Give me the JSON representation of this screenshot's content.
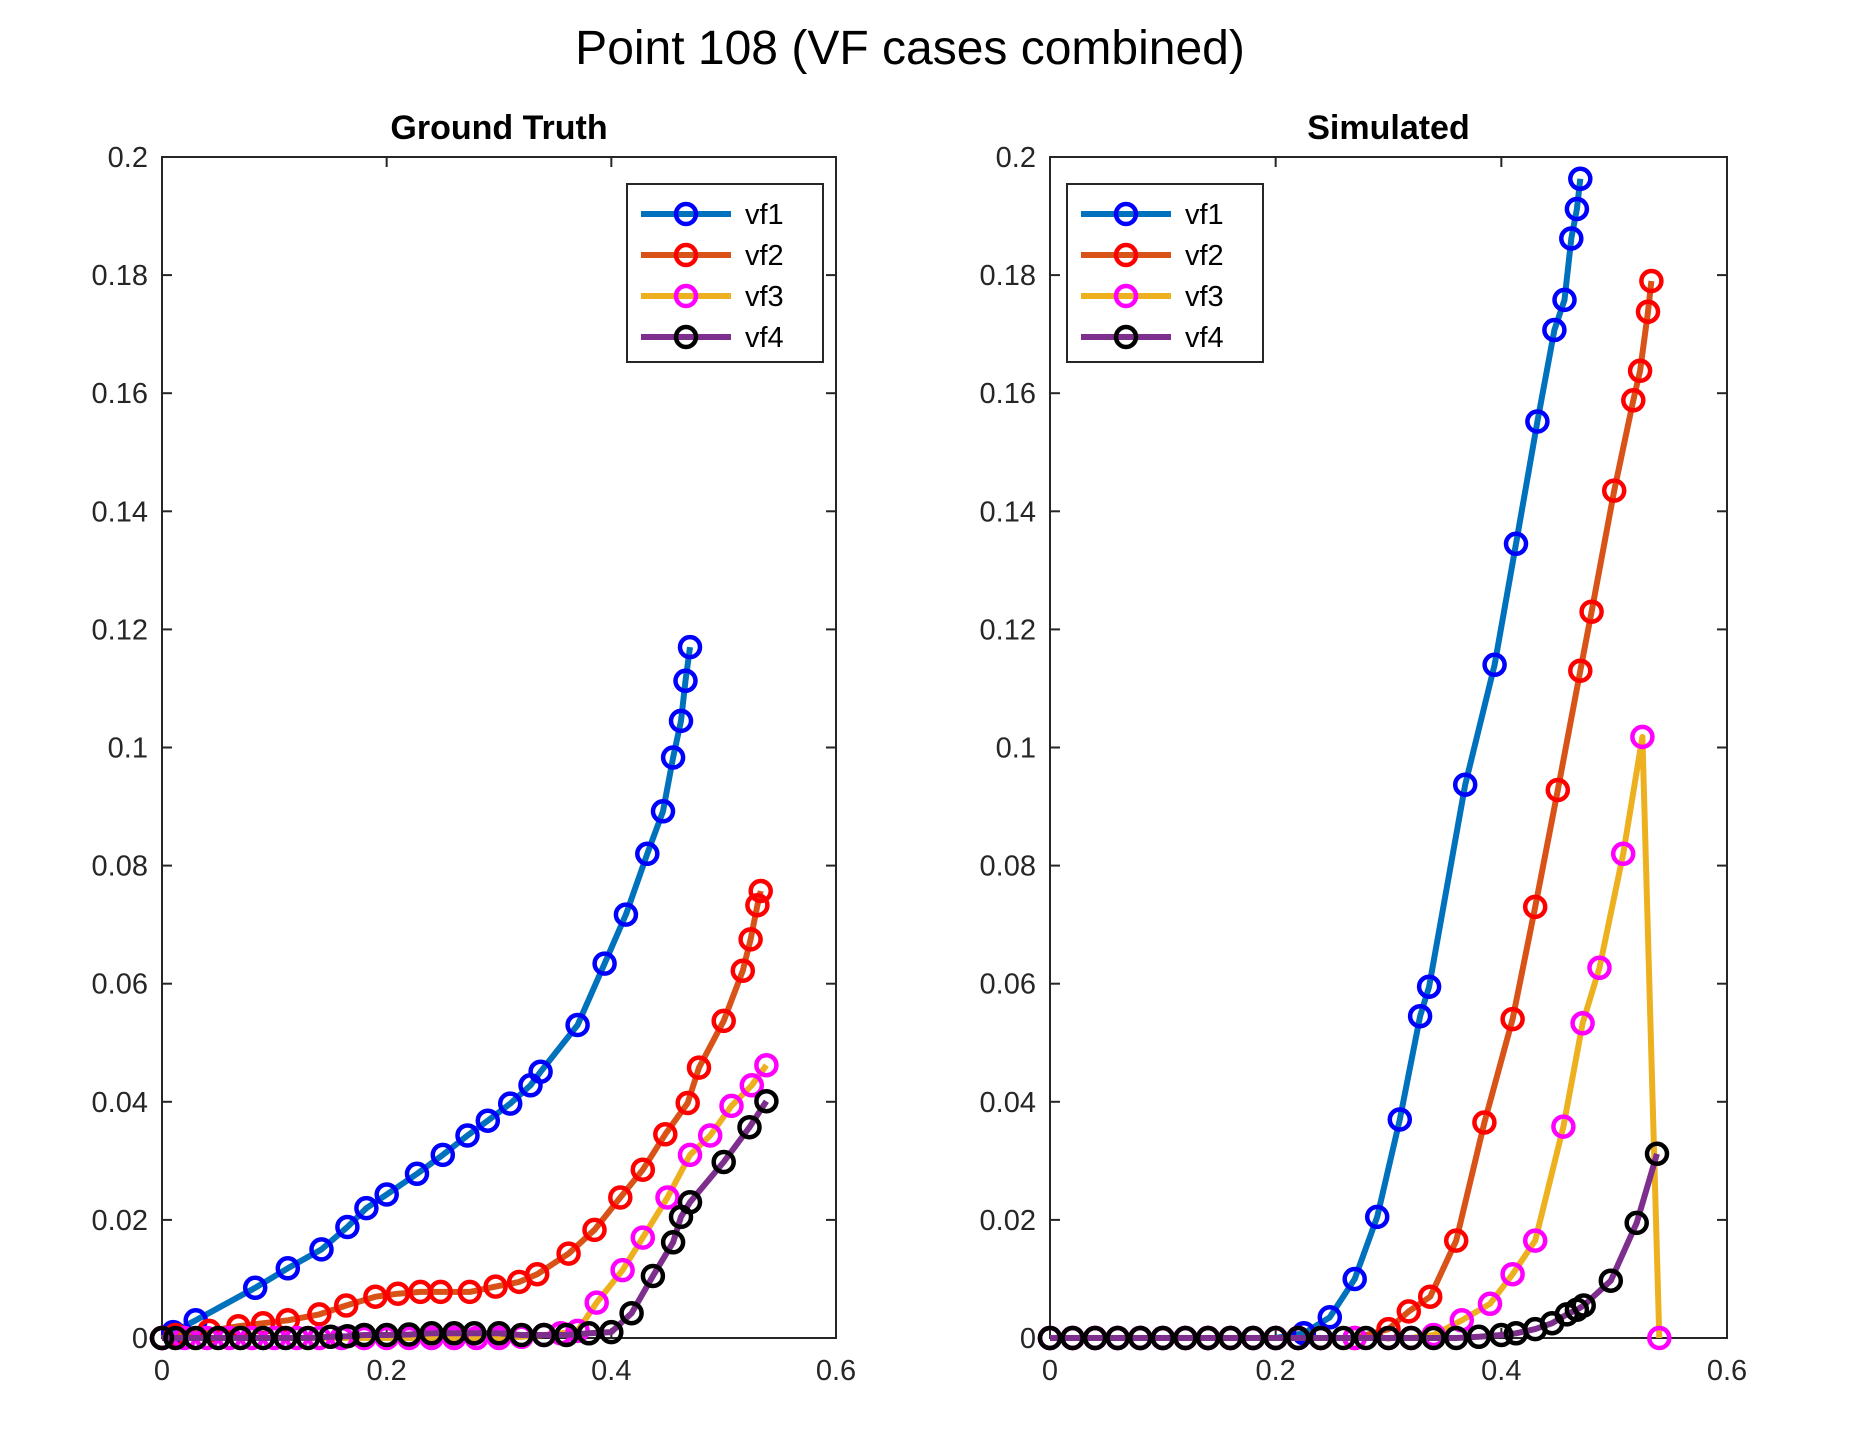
{
  "figure": {
    "title": "Point 108 (VF cases combined)"
  },
  "chart_data": [
    {
      "type": "line",
      "title": "Ground Truth",
      "xlabel": "",
      "ylabel": "",
      "xlim": [
        0,
        0.6
      ],
      "ylim": [
        0,
        0.2
      ],
      "xticks": [
        "0",
        "0.2",
        "0.4",
        "0.6"
      ],
      "yticks": [
        "0",
        "0.02",
        "0.04",
        "0.06",
        "0.08",
        "0.1",
        "0.12",
        "0.14",
        "0.16",
        "0.18",
        "0.2"
      ],
      "grid": false,
      "legend": "top-right",
      "series": [
        {
          "name": "vf1",
          "line_color": "#0072BD",
          "marker_color": "#0000FF",
          "x": [
            0,
            0.01,
            0.03,
            0.083,
            0.112,
            0.142,
            0.165,
            0.182,
            0.2,
            0.227,
            0.25,
            0.272,
            0.29,
            0.31,
            0.328,
            0.337,
            0.37,
            0.394,
            0.413,
            0.432,
            0.446,
            0.455,
            0.462,
            0.466,
            0.47
          ],
          "y": [
            0,
            0.001,
            0.003,
            0.0085,
            0.0118,
            0.015,
            0.0188,
            0.022,
            0.0243,
            0.0278,
            0.031,
            0.0343,
            0.0368,
            0.0397,
            0.0428,
            0.0451,
            0.053,
            0.0634,
            0.0717,
            0.082,
            0.0892,
            0.0983,
            0.1045,
            0.1113,
            0.117
          ]
        },
        {
          "name": "vf2",
          "line_color": "#D95319",
          "marker_color": "#FF0000",
          "x": [
            0,
            0.012,
            0.042,
            0.068,
            0.09,
            0.112,
            0.14,
            0.164,
            0.19,
            0.21,
            0.23,
            0.248,
            0.274,
            0.297,
            0.318,
            0.334,
            0.362,
            0.385,
            0.408,
            0.428,
            0.448,
            0.468,
            0.478,
            0.5,
            0.517,
            0.524,
            0.53,
            0.533
          ],
          "y": [
            0,
            0.0005,
            0.0012,
            0.002,
            0.0025,
            0.003,
            0.004,
            0.0055,
            0.007,
            0.0075,
            0.0078,
            0.0078,
            0.0078,
            0.0087,
            0.0095,
            0.0108,
            0.0143,
            0.0183,
            0.0238,
            0.0285,
            0.0345,
            0.0398,
            0.0458,
            0.0537,
            0.0622,
            0.0675,
            0.0733,
            0.0757
          ]
        },
        {
          "name": "vf3",
          "line_color": "#EDB120",
          "marker_color": "#FF00FF",
          "x": [
            0,
            0.02,
            0.04,
            0.06,
            0.08,
            0.1,
            0.12,
            0.14,
            0.16,
            0.18,
            0.2,
            0.22,
            0.24,
            0.26,
            0.28,
            0.3,
            0.32,
            0.34,
            0.355,
            0.37,
            0.387,
            0.41,
            0.428,
            0.45,
            0.47,
            0.488,
            0.507,
            0.525,
            0.538
          ],
          "y": [
            0,
            0,
            0,
            0,
            0,
            0,
            0,
            0,
            0,
            0,
            0,
            0,
            0,
            0,
            0,
            0,
            0.0002,
            0.0005,
            0.0008,
            0.0012,
            0.006,
            0.0115,
            0.017,
            0.0238,
            0.031,
            0.0343,
            0.0393,
            0.0428,
            0.0462
          ]
        },
        {
          "name": "vf4",
          "line_color": "#7E2F8E",
          "marker_color": "#000000",
          "x": [
            0,
            0.012,
            0.03,
            0.05,
            0.07,
            0.09,
            0.11,
            0.13,
            0.15,
            0.165,
            0.18,
            0.2,
            0.22,
            0.24,
            0.26,
            0.278,
            0.3,
            0.32,
            0.34,
            0.36,
            0.38,
            0.4,
            0.418,
            0.437,
            0.455,
            0.462,
            0.47,
            0.5,
            0.523,
            0.538
          ],
          "y": [
            0,
            0,
            0,
            0,
            0,
            0,
            0,
            0,
            0.0002,
            0.0003,
            0.0005,
            0.0005,
            0.0006,
            0.0008,
            0.0008,
            0.0008,
            0.0008,
            0.0005,
            0.0005,
            0.0005,
            0.0008,
            0.001,
            0.0042,
            0.0105,
            0.0162,
            0.0205,
            0.023,
            0.0298,
            0.0357,
            0.0401
          ]
        }
      ]
    },
    {
      "type": "line",
      "title": "Simulated",
      "xlabel": "",
      "ylabel": "",
      "xlim": [
        0,
        0.6
      ],
      "ylim": [
        0,
        0.2
      ],
      "xticks": [
        "0",
        "0.2",
        "0.4",
        "0.6"
      ],
      "yticks": [
        "0",
        "0.02",
        "0.04",
        "0.06",
        "0.08",
        "0.1",
        "0.12",
        "0.14",
        "0.16",
        "0.18",
        "0.2"
      ],
      "grid": false,
      "legend": "top-left",
      "series": [
        {
          "name": "vf1",
          "line_color": "#0072BD",
          "marker_color": "#0000FF",
          "x": [
            0,
            0.02,
            0.04,
            0.06,
            0.08,
            0.1,
            0.12,
            0.14,
            0.16,
            0.18,
            0.2,
            0.225,
            0.248,
            0.27,
            0.29,
            0.31,
            0.328,
            0.336,
            0.368,
            0.394,
            0.413,
            0.432,
            0.447,
            0.456,
            0.462,
            0.467,
            0.47
          ],
          "y": [
            0,
            0,
            0,
            0,
            0,
            0,
            0,
            0,
            0,
            0,
            0,
            0.0008,
            0.0035,
            0.01,
            0.0205,
            0.037,
            0.0545,
            0.0595,
            0.0937,
            0.114,
            0.1345,
            0.1552,
            0.1707,
            0.1758,
            0.1862,
            0.1912,
            0.1963
          ]
        },
        {
          "name": "vf2",
          "line_color": "#D95319",
          "marker_color": "#FF0000",
          "x": [
            0,
            0.02,
            0.04,
            0.06,
            0.08,
            0.1,
            0.12,
            0.14,
            0.16,
            0.18,
            0.2,
            0.22,
            0.24,
            0.27,
            0.3,
            0.318,
            0.337,
            0.36,
            0.385,
            0.41,
            0.43,
            0.45,
            0.47,
            0.48,
            0.5,
            0.517,
            0.523,
            0.53,
            0.533
          ],
          "y": [
            0,
            0,
            0,
            0,
            0,
            0,
            0,
            0,
            0,
            0,
            0,
            0,
            0,
            0,
            0.0015,
            0.0045,
            0.007,
            0.0165,
            0.0365,
            0.054,
            0.073,
            0.0928,
            0.113,
            0.123,
            0.1435,
            0.1588,
            0.1638,
            0.1738,
            0.179
          ]
        },
        {
          "name": "vf3",
          "line_color": "#EDB120",
          "marker_color": "#FF00FF",
          "x": [
            0,
            0.02,
            0.04,
            0.06,
            0.08,
            0.1,
            0.12,
            0.14,
            0.16,
            0.18,
            0.2,
            0.22,
            0.24,
            0.27,
            0.3,
            0.32,
            0.34,
            0.365,
            0.39,
            0.41,
            0.43,
            0.455,
            0.472,
            0.487,
            0.508,
            0.525,
            0.54
          ],
          "y": [
            0,
            0,
            0,
            0,
            0,
            0,
            0,
            0,
            0,
            0,
            0,
            0,
            0,
            0,
            0,
            0,
            0.0005,
            0.003,
            0.0058,
            0.0108,
            0.0165,
            0.0358,
            0.0533,
            0.0627,
            0.082,
            0.1018,
            0
          ]
        },
        {
          "name": "vf4",
          "line_color": "#7E2F8E",
          "marker_color": "#000000",
          "x": [
            0,
            0.02,
            0.04,
            0.06,
            0.08,
            0.1,
            0.12,
            0.14,
            0.16,
            0.18,
            0.2,
            0.22,
            0.24,
            0.26,
            0.28,
            0.3,
            0.32,
            0.34,
            0.36,
            0.38,
            0.4,
            0.413,
            0.43,
            0.445,
            0.458,
            0.467,
            0.473,
            0.497,
            0.52,
            0.538
          ],
          "y": [
            0,
            0,
            0,
            0,
            0,
            0,
            0,
            0,
            0,
            0,
            0,
            0,
            0,
            0,
            0,
            0,
            0,
            0,
            0,
            0.0002,
            0.0005,
            0.0008,
            0.0015,
            0.0025,
            0.004,
            0.0048,
            0.0055,
            0.0097,
            0.0195,
            0.0312
          ]
        }
      ]
    }
  ]
}
